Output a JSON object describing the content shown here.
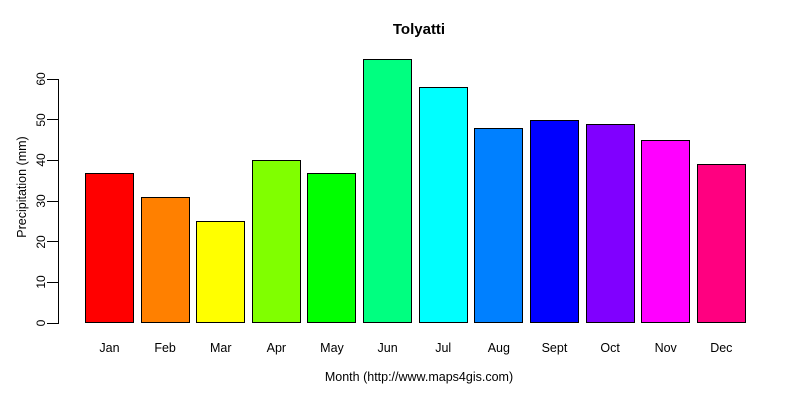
{
  "figure": {
    "title": "Tolyatti",
    "xlabel": "Month (http://www.maps4gis.com)",
    "ylabel": "Precipitation (mm)"
  },
  "chart_data": {
    "type": "bar",
    "title": "Tolyatti",
    "xlabel": "Month (http://www.maps4gis.com)",
    "ylabel": "Precipitation (mm)",
    "categories": [
      "Jan",
      "Feb",
      "Mar",
      "Apr",
      "May",
      "Jun",
      "Jul",
      "Aug",
      "Sept",
      "Oct",
      "Nov",
      "Dec"
    ],
    "values": [
      37,
      31,
      25,
      40,
      37,
      65,
      58,
      48,
      50,
      49,
      45,
      39
    ],
    "bar_colors": [
      "#FF0000",
      "#FF8000",
      "#FFFF00",
      "#80FF00",
      "#00FF00",
      "#00FF80",
      "#00FFFF",
      "#0080FF",
      "#0000FF",
      "#8000FF",
      "#FF00FF",
      "#FF0080"
    ],
    "bar_border_color": "#000000",
    "yticks": [
      0,
      10,
      20,
      30,
      40,
      50,
      60
    ],
    "ylim": [
      0,
      65
    ],
    "grid": false,
    "legend": "none",
    "background": "#FFFFFF"
  }
}
